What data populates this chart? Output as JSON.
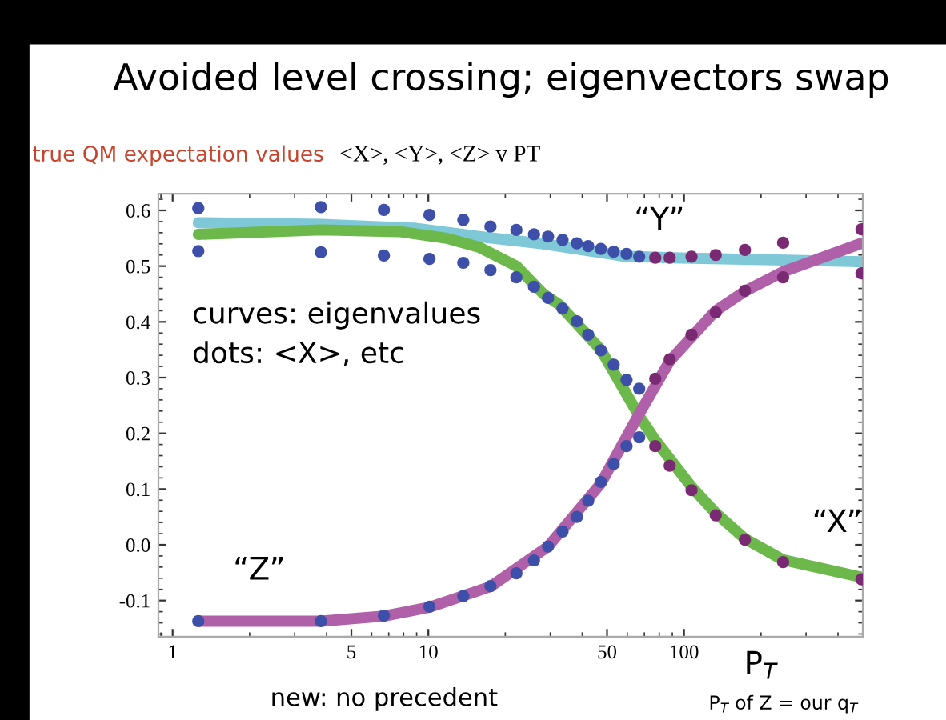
{
  "chart_data": {
    "type": "line",
    "title": "Avoided level crossing; eigenvectors swap",
    "subtitle": "true QM expectation values",
    "xlabel": "P$_{T}$",
    "annotations": [
      "<X>, <Y>, <Z> v PT",
      "curves: eigenvalues",
      "dots: <X>, etc",
      "P$_{T}$ of Z = our q$_{T}$",
      "new: no precedent",
      "“Y”",
      "“X”",
      "“Z”"
    ],
    "log": "x",
    "xlim": [
      0.88,
      500
    ],
    "xticks": [
      1,
      5,
      10,
      50,
      100
    ],
    "ylim": [
      -0.165,
      0.63
    ],
    "yticks": [
      {
        "value": -0.1,
        "label": "-0.1"
      },
      {
        "value": 0,
        "label": "0.0"
      },
      0.1,
      0.2,
      0.3,
      0.4,
      0.5,
      0.6
    ],
    "grid": false,
    "legend": false,
    "series": [
      {
        "color": "#7ec8d8",
        "marker": "none",
        "x": [
          1.26,
          3.8,
          8.9,
          15.8,
          28.2,
          43.3,
          57.8,
          89,
          494
        ],
        "values": [
          0.578,
          0.575,
          0.568,
          0.553,
          0.54,
          0.527,
          0.518,
          0.515,
          0.508
        ]
      },
      {
        "color": "#6cb84a",
        "marker": "none",
        "x": [
          1.26,
          3.8,
          7.7,
          11.8,
          15.8,
          22.1,
          28.2,
          32.5,
          47.3,
          66.8,
          77.2,
          107,
          133,
          173,
          244,
          494
        ],
        "values": [
          0.557,
          0.565,
          0.562,
          0.55,
          0.534,
          0.5,
          0.45,
          0.431,
          0.35,
          0.231,
          0.188,
          0.104,
          0.057,
          0.011,
          -0.027,
          -0.058
        ]
      },
      {
        "color": "#b060a8",
        "marker": "none",
        "x": [
          1.26,
          3.8,
          6.7,
          10.1,
          17.5,
          29.4,
          47.3,
          66.8,
          88,
          133,
          173,
          244,
          494
        ],
        "values": [
          -0.137,
          -0.137,
          -0.128,
          -0.112,
          -0.075,
          -0.003,
          0.11,
          0.235,
          0.33,
          0.42,
          0.455,
          0.49,
          0.541
        ]
      },
      {
        "type": "scatter",
        "marker": "circle",
        "x": [
          1.26,
          3.8,
          6.7,
          10.1,
          13.7,
          17.5,
          22.1,
          25.9,
          29.4,
          33.5,
          38.1,
          42.2,
          47.3,
          53.1,
          59.6,
          66.8,
          77.2,
          87.9,
          107,
          133,
          173,
          244,
          494
        ],
        "values": [
          0.604,
          0.606,
          0.601,
          0.592,
          0.583,
          0.571,
          0.565,
          0.557,
          0.553,
          0.547,
          0.541,
          0.536,
          0.531,
          0.526,
          0.522,
          0.517,
          0.515,
          0.515,
          0.517,
          0.52,
          0.529,
          0.542,
          0.566
        ],
        "colors": [
          "#3d4fa8",
          "#3d4fa8",
          "#3d4fa8",
          "#3d4fa8",
          "#3d4fa8",
          "#3d4fa8",
          "#3d4fa8",
          "#3d4fa8",
          "#3d4fa8",
          "#3d4fa8",
          "#3d4fa8",
          "#3d4fa8",
          "#3d4fa8",
          "#3d4fa8",
          "#3d4fa8",
          "#3d4fa8",
          "#7a2a72",
          "#7a2a72",
          "#7a2a72",
          "#7a2a72",
          "#7a2a72",
          "#7a2a72",
          "#7a2a72"
        ]
      },
      {
        "type": "scatter",
        "marker": "circle",
        "x": [
          1.26,
          3.8,
          6.7,
          10.1,
          13.7,
          17.5,
          22.1,
          25.9,
          29.4,
          33.5,
          38.1,
          42.2,
          47.3,
          53.1,
          59.6,
          66.8,
          77.2,
          87.9,
          107,
          133,
          173,
          244,
          494
        ],
        "values": [
          0.527,
          0.525,
          0.519,
          0.513,
          0.506,
          0.493,
          0.48,
          0.463,
          0.443,
          0.424,
          0.401,
          0.377,
          0.349,
          0.323,
          0.296,
          0.28,
          0.177,
          0.142,
          0.098,
          0.053,
          0.009,
          -0.031,
          -0.062
        ],
        "colors": [
          "#3d4fa8",
          "#3d4fa8",
          "#3d4fa8",
          "#3d4fa8",
          "#3d4fa8",
          "#3d4fa8",
          "#3d4fa8",
          "#3d4fa8",
          "#3d4fa8",
          "#3d4fa8",
          "#3d4fa8",
          "#3d4fa8",
          "#3d4fa8",
          "#3d4fa8",
          "#3d4fa8",
          "#3d4fa8",
          "#7a2a72",
          "#7a2a72",
          "#7a2a72",
          "#7a2a72",
          "#7a2a72",
          "#7a2a72",
          "#7a2a72"
        ]
      },
      {
        "type": "scatter",
        "marker": "circle",
        "x": [
          1.26,
          3.8,
          6.7,
          10.1,
          13.7,
          17.5,
          22.1,
          25.9,
          29.4,
          33.5,
          38.1,
          42.2,
          47.3,
          53.1,
          59.6,
          66.8,
          77.2,
          87.9,
          107,
          133,
          173,
          244,
          494
        ],
        "values": [
          -0.137,
          -0.137,
          -0.127,
          -0.111,
          -0.092,
          -0.074,
          -0.051,
          -0.028,
          -0.003,
          0.024,
          0.05,
          0.079,
          0.113,
          0.145,
          0.177,
          0.193,
          0.298,
          0.333,
          0.377,
          0.417,
          0.456,
          0.48,
          0.487
        ],
        "colors": [
          "#3d4fa8",
          "#3d4fa8",
          "#3d4fa8",
          "#3d4fa8",
          "#3d4fa8",
          "#3d4fa8",
          "#3d4fa8",
          "#3d4fa8",
          "#3d4fa8",
          "#3d4fa8",
          "#3d4fa8",
          "#3d4fa8",
          "#3d4fa8",
          "#3d4fa8",
          "#3d4fa8",
          "#3d4fa8",
          "#7a2a72",
          "#7a2a72",
          "#7a2a72",
          "#7a2a72",
          "#7a2a72",
          "#7a2a72",
          "#7a2a72"
        ]
      }
    ]
  }
}
